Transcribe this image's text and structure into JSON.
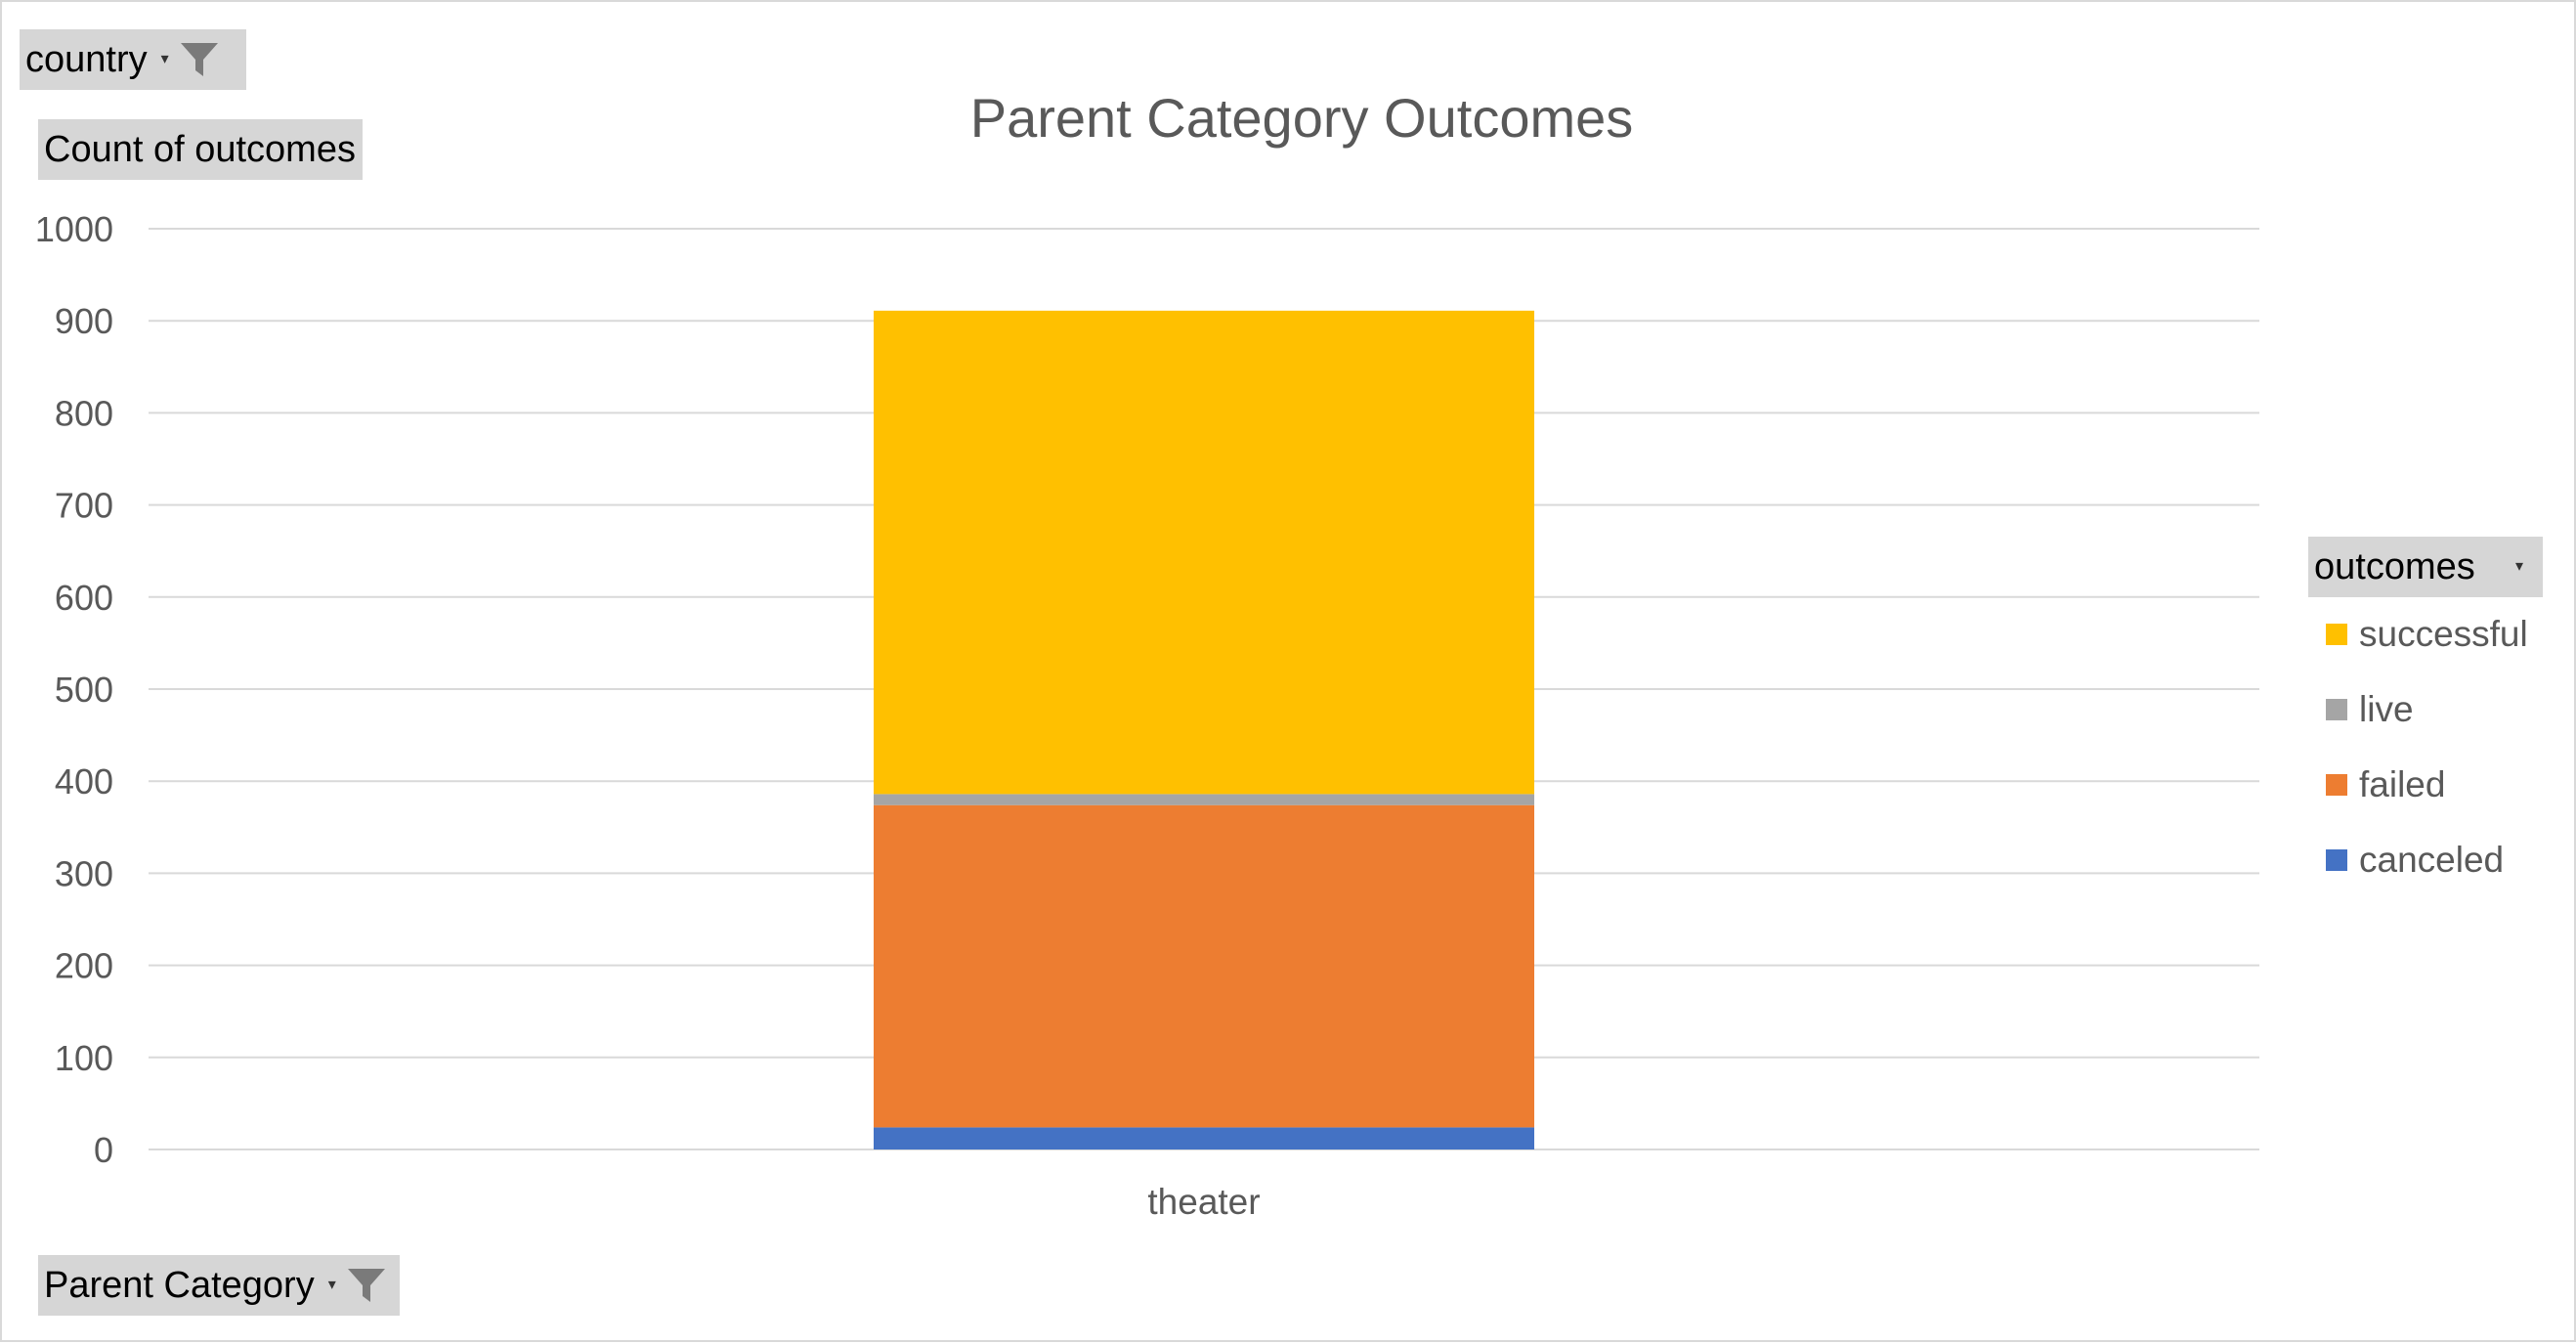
{
  "filters": {
    "country": {
      "label": "country"
    },
    "values_field": {
      "label": "Count of outcomes"
    },
    "axis_field": {
      "label": "Parent Category"
    },
    "legend_field": {
      "label": "outcomes"
    }
  },
  "icons": {
    "filter": "funnel-icon",
    "dropdown": "chevron-down-icon"
  },
  "chart_data": {
    "type": "bar",
    "stacked": true,
    "title": "Parent Category Outcomes",
    "xlabel": "",
    "ylabel": "",
    "categories": [
      "theater"
    ],
    "ylim": [
      0,
      1000
    ],
    "yticks": [
      0,
      100,
      200,
      300,
      400,
      500,
      600,
      700,
      800,
      900,
      1000
    ],
    "grid": true,
    "legend_position": "right",
    "series": [
      {
        "name": "canceled",
        "color": "#4472c4",
        "values": [
          24
        ]
      },
      {
        "name": "failed",
        "color": "#ed7d31",
        "values": [
          350
        ]
      },
      {
        "name": "live",
        "color": "#a5a5a5",
        "values": [
          12
        ]
      },
      {
        "name": "successful",
        "color": "#ffc000",
        "values": [
          525
        ]
      }
    ],
    "legend_order": [
      "successful",
      "live",
      "failed",
      "canceled"
    ]
  }
}
